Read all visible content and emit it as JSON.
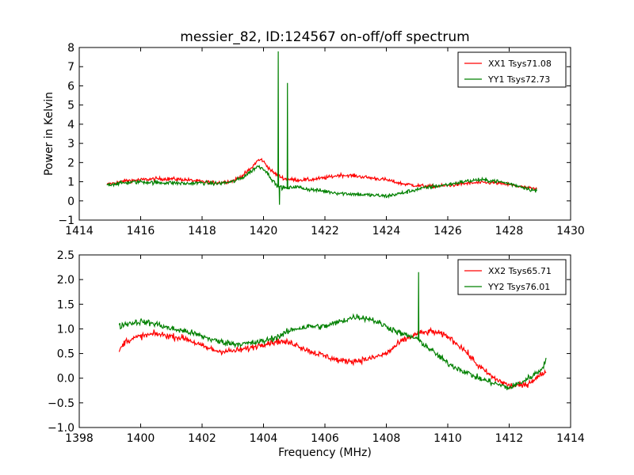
{
  "figure": {
    "title": "messier_82, ID:124567 on-off/off spectrum"
  },
  "chart_data": [
    {
      "type": "line",
      "title": "messier_82, ID:124567 on-off/off spectrum",
      "xlabel": "",
      "ylabel": "Power in Kelvin",
      "xlim": [
        1414,
        1430
      ],
      "ylim": [
        -1,
        8
      ],
      "xticks": [
        1414,
        1416,
        1418,
        1420,
        1422,
        1424,
        1426,
        1428,
        1430
      ],
      "yticks": [
        -1,
        0,
        1,
        2,
        3,
        4,
        5,
        6,
        7,
        8
      ],
      "legend": "top-right",
      "grid": false,
      "series": [
        {
          "name": "XX1 Tsys71.08",
          "color": "#ff0000",
          "x": [
            1414.9,
            1415.5,
            1416.0,
            1416.5,
            1417.0,
            1417.5,
            1418.0,
            1418.5,
            1419.0,
            1419.3,
            1419.6,
            1419.8,
            1419.95,
            1420.1,
            1420.3,
            1420.5,
            1420.7,
            1421.0,
            1421.5,
            1422.0,
            1422.5,
            1423.0,
            1423.5,
            1424.0,
            1424.5,
            1425.0,
            1425.5,
            1426.0,
            1426.5,
            1427.0,
            1427.5,
            1428.0,
            1428.5,
            1428.9
          ],
          "y": [
            0.85,
            1.05,
            1.1,
            1.15,
            1.15,
            1.1,
            1.0,
            0.95,
            1.05,
            1.3,
            1.7,
            2.1,
            2.15,
            1.85,
            1.5,
            1.3,
            1.15,
            1.1,
            1.1,
            1.2,
            1.35,
            1.3,
            1.2,
            1.1,
            0.9,
            0.8,
            0.75,
            0.8,
            0.9,
            0.95,
            0.95,
            0.85,
            0.7,
            0.6
          ],
          "noise": 0.09,
          "spikes": []
        },
        {
          "name": "YY1 Tsys72.73",
          "color": "#008000",
          "x": [
            1414.9,
            1415.5,
            1416.0,
            1416.5,
            1417.0,
            1417.5,
            1418.0,
            1418.5,
            1419.0,
            1419.3,
            1419.6,
            1419.8,
            1420.0,
            1420.2,
            1420.4,
            1420.6,
            1420.8,
            1421.0,
            1421.5,
            1422.0,
            1422.5,
            1423.0,
            1423.5,
            1424.0,
            1424.5,
            1425.0,
            1425.5,
            1426.0,
            1426.5,
            1427.0,
            1427.5,
            1428.0,
            1428.5,
            1428.9
          ],
          "y": [
            0.85,
            0.95,
            1.0,
            0.95,
            0.95,
            0.9,
            0.95,
            0.9,
            1.0,
            1.2,
            1.55,
            1.8,
            1.7,
            1.3,
            0.85,
            0.7,
            0.65,
            0.75,
            0.6,
            0.5,
            0.4,
            0.35,
            0.3,
            0.25,
            0.4,
            0.6,
            0.75,
            0.85,
            1.0,
            1.1,
            1.05,
            0.9,
            0.7,
            0.5
          ],
          "noise": 0.1,
          "spikes": [
            {
              "x": 1420.48,
              "y": 7.8
            },
            {
              "x": 1420.52,
              "y": -0.2
            },
            {
              "x": 1420.78,
              "y": 6.15
            }
          ]
        }
      ]
    },
    {
      "type": "line",
      "title": "",
      "xlabel": "Frequency (MHz)",
      "ylabel": "",
      "xlim": [
        1398,
        1414
      ],
      "ylim": [
        -1.0,
        2.5
      ],
      "xticks": [
        1398,
        1400,
        1402,
        1404,
        1406,
        1408,
        1410,
        1412,
        1414
      ],
      "yticks": [
        -1.0,
        -0.5,
        0.0,
        0.5,
        1.0,
        1.5,
        2.0,
        2.5
      ],
      "legend": "top-right",
      "grid": false,
      "series": [
        {
          "name": "XX2 Tsys65.71",
          "color": "#ff0000",
          "x": [
            1399.3,
            1399.5,
            1400.0,
            1400.5,
            1401.0,
            1401.5,
            1402.0,
            1402.5,
            1403.0,
            1403.5,
            1404.0,
            1404.5,
            1405.0,
            1405.5,
            1406.0,
            1406.5,
            1407.0,
            1407.5,
            1408.0,
            1408.5,
            1409.0,
            1409.5,
            1410.0,
            1410.5,
            1411.0,
            1411.5,
            1412.0,
            1412.5,
            1413.0,
            1413.2
          ],
          "y": [
            0.55,
            0.75,
            0.85,
            0.9,
            0.85,
            0.8,
            0.65,
            0.55,
            0.55,
            0.6,
            0.7,
            0.75,
            0.7,
            0.55,
            0.45,
            0.35,
            0.35,
            0.4,
            0.5,
            0.75,
            0.9,
            0.95,
            0.85,
            0.6,
            0.25,
            0.0,
            -0.15,
            -0.15,
            0.05,
            0.15
          ],
          "noise": 0.06,
          "spikes": []
        },
        {
          "name": "YY2 Tsys76.01",
          "color": "#008000",
          "x": [
            1399.3,
            1399.5,
            1400.0,
            1400.5,
            1401.0,
            1401.5,
            1402.0,
            1402.5,
            1403.0,
            1403.5,
            1404.0,
            1404.5,
            1405.0,
            1405.5,
            1406.0,
            1406.5,
            1407.0,
            1407.5,
            1408.0,
            1408.5,
            1409.0,
            1409.5,
            1410.0,
            1410.5,
            1411.0,
            1411.5,
            1412.0,
            1412.5,
            1413.0,
            1413.2
          ],
          "y": [
            1.05,
            1.1,
            1.15,
            1.1,
            1.0,
            0.95,
            0.85,
            0.75,
            0.7,
            0.7,
            0.75,
            0.85,
            1.0,
            1.05,
            1.05,
            1.15,
            1.25,
            1.2,
            1.05,
            0.9,
            0.8,
            0.55,
            0.3,
            0.15,
            0.0,
            -0.1,
            -0.2,
            -0.05,
            0.15,
            0.35
          ],
          "noise": 0.06,
          "spikes": [
            {
              "x": 1409.05,
              "y": 2.15
            }
          ]
        }
      ]
    }
  ]
}
